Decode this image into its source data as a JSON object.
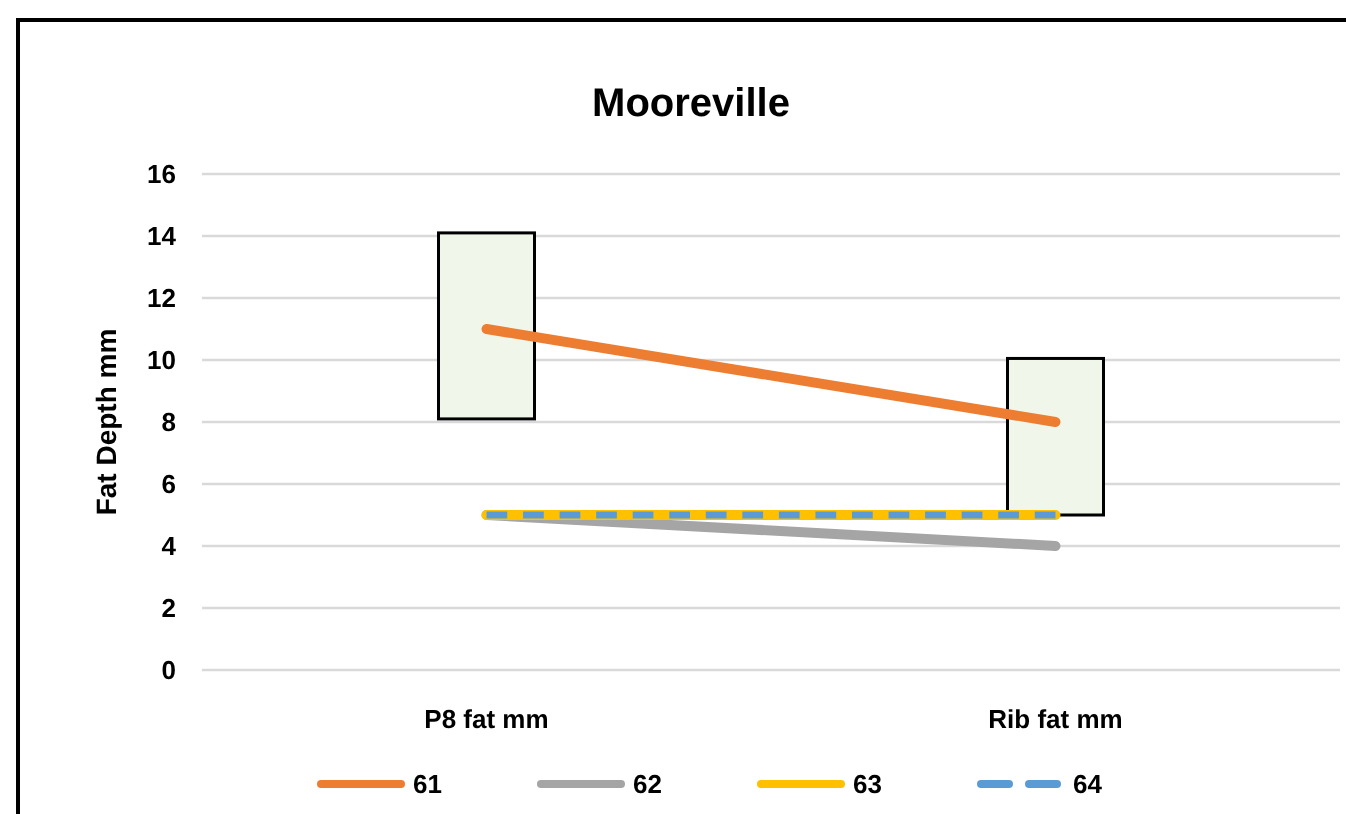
{
  "chart_data": {
    "type": "line",
    "title": "Mooreville",
    "ylabel": "Fat Depth mm",
    "categories": [
      "P8 fat mm",
      "Rib fat mm"
    ],
    "ylim": [
      0,
      16
    ],
    "yticks": [
      0,
      2,
      4,
      6,
      8,
      10,
      12,
      14,
      16
    ],
    "grid": "y",
    "legend": "bottom",
    "marker": "none",
    "series": [
      {
        "type": "bar",
        "color": "#f0f7ea",
        "base": [
          8.1,
          5
        ],
        "values": [
          6,
          5.05
        ]
      },
      {
        "name": "61",
        "color": "#ed7d31",
        "values": [
          11,
          8
        ],
        "line_style": "solid"
      },
      {
        "name": "62",
        "color": "#a5a5a5",
        "values": [
          5,
          4
        ],
        "line_style": "solid"
      },
      {
        "name": "63",
        "color": "#ffc000",
        "values": [
          5,
          5
        ],
        "line_style": "solid"
      },
      {
        "name": "64",
        "color": "#5b9bd5",
        "values": [
          5,
          5
        ],
        "line_style": "dashed"
      }
    ]
  }
}
